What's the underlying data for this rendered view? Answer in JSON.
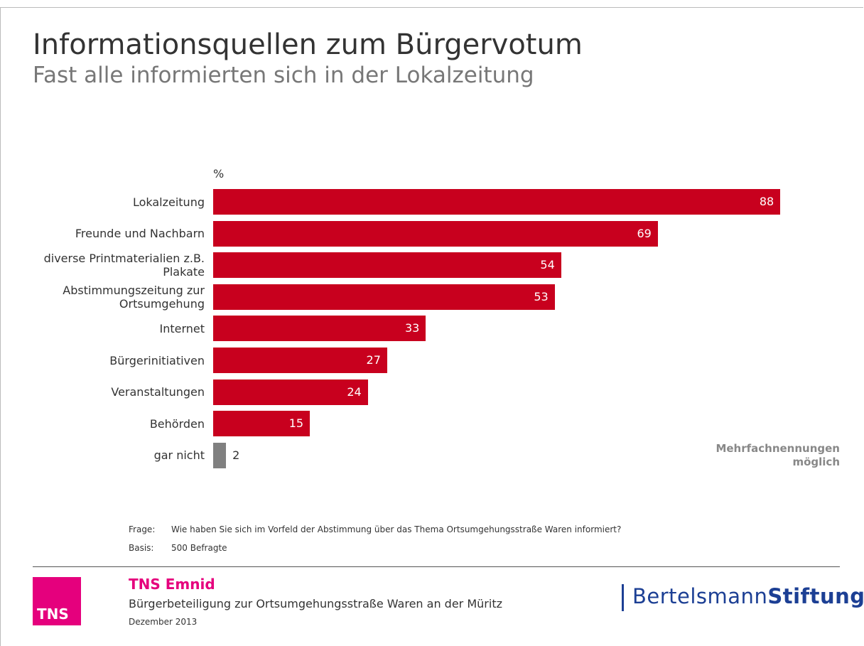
{
  "chart_data": {
    "type": "bar",
    "orientation": "horizontal",
    "title": "Informationsquellen zum Bürgervotum",
    "subtitle": "Fast alle informierten sich in der Lokalzeitung",
    "unit_label": "%",
    "categories": [
      "Lokalzeitung",
      "Freunde und Nachbarn",
      "diverse Printmaterialien\nz.B. Plakate",
      "Abstimmungszeitung\nzur Ortsumgehung",
      "Internet",
      "Bürgerinitiativen",
      "Veranstaltungen",
      "Behörden",
      "gar nicht"
    ],
    "values": [
      88,
      69,
      54,
      53,
      33,
      27,
      24,
      15,
      2
    ],
    "colors": [
      "#c8001e",
      "#c8001e",
      "#c8001e",
      "#c8001e",
      "#c8001e",
      "#c8001e",
      "#c8001e",
      "#c8001e",
      "#808080"
    ],
    "xlim": [
      0,
      100
    ],
    "note": "Mehrfachnennungen\nmöglich"
  },
  "footer": {
    "question_label": "Frage:",
    "question": "Wie haben Sie sich im Vorfeld der Abstimmung über das Thema Ortsumgehungsstraße Waren informiert?",
    "base_label": "Basis:",
    "base": "500 Befragte",
    "brand": "TNS Emnid",
    "project": "Bürgerbeteiligung zur Ortsumgehungsstraße Waren an der Müritz",
    "date": "Dezember 2013",
    "logo_left": "TNS",
    "logo_right_1": "Bertelsmann",
    "logo_right_2": "Stiftung"
  }
}
